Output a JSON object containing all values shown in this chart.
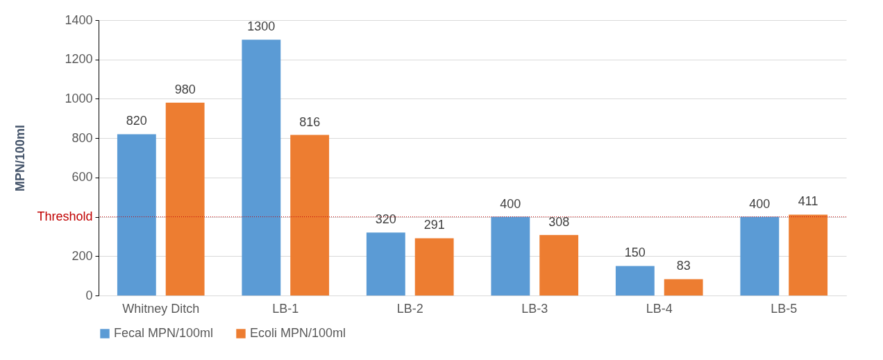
{
  "chart_data": {
    "type": "bar",
    "ylabel": "MPN/100ml",
    "categories": [
      "Whitney Ditch",
      "LB-1",
      "LB-2",
      "LB-3",
      "LB-4",
      "LB-5"
    ],
    "series": [
      {
        "name": "Fecal MPN/100ml",
        "color": "#5b9bd5",
        "values": [
          820,
          1300,
          320,
          400,
          150,
          400
        ]
      },
      {
        "name": "Ecoli MPN/100ml",
        "color": "#ed7d31",
        "values": [
          980,
          816,
          291,
          308,
          83,
          411
        ]
      }
    ],
    "ylim": [
      0,
      1400
    ],
    "yticks": [
      0,
      200,
      {
        "value": 400,
        "label": "Threshold"
      },
      600,
      800,
      1000,
      1200,
      1400
    ],
    "ref_lines": [
      {
        "axis": "y",
        "value": 400,
        "color": "#c00000",
        "line_style": "dotted"
      }
    ],
    "grid": "y",
    "legend": "bottom",
    "data_labels": true
  }
}
